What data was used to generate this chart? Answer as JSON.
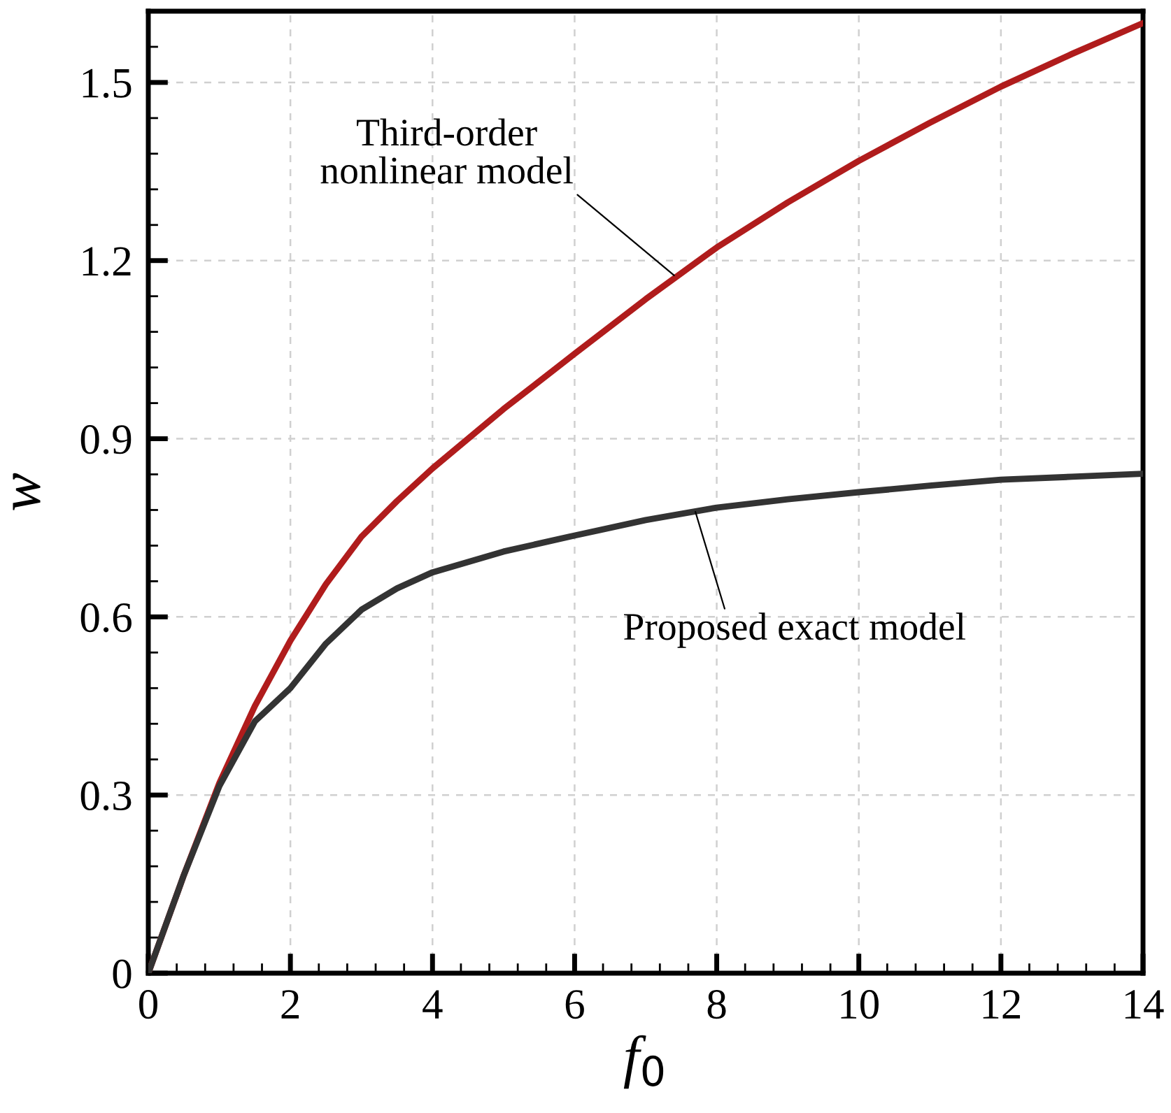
{
  "chart_data": {
    "type": "line",
    "xlabel": "f$_{0}$",
    "ylabel": "w",
    "xlim": [
      0,
      14
    ],
    "ylim": [
      0,
      1.62
    ],
    "xticks": [
      0,
      2,
      4,
      6,
      8,
      10,
      12,
      14
    ],
    "yticks": [
      0,
      0.3,
      0.6,
      0.9,
      1.2,
      1.5
    ],
    "grid": true,
    "marker": "none",
    "line_style": "solid",
    "series": [
      {
        "color": "#b01c1c",
        "x": [
          0,
          0.5,
          1,
          1.5,
          2,
          2.5,
          3,
          3.5,
          4,
          5,
          6,
          7,
          8,
          9,
          10,
          11,
          12,
          13,
          14
        ],
        "values": [
          0,
          0.165,
          0.32,
          0.45,
          0.56,
          0.655,
          0.735,
          0.795,
          0.85,
          0.95,
          1.043,
          1.135,
          1.222,
          1.298,
          1.368,
          1.432,
          1.493,
          1.548,
          1.6
        ]
      },
      {
        "color": "#333333",
        "x": [
          0,
          0.5,
          1,
          1.5,
          2,
          2.5,
          3,
          3.5,
          4,
          5,
          6,
          7,
          8,
          9,
          10,
          11,
          12,
          13,
          14
        ],
        "values": [
          0,
          0.165,
          0.315,
          0.424,
          0.48,
          0.555,
          0.612,
          0.648,
          0.675,
          0.71,
          0.737,
          0.763,
          0.784,
          0.798,
          0.81,
          0.821,
          0.831,
          0.836,
          0.841
        ]
      }
    ],
    "annotations": [
      {
        "text": "Third-order\nnonlinear model",
        "x": 7.4,
        "y": 1.175
      },
      {
        "text": "Proposed exact model",
        "x": 7.7,
        "y": 0.777
      }
    ]
  }
}
